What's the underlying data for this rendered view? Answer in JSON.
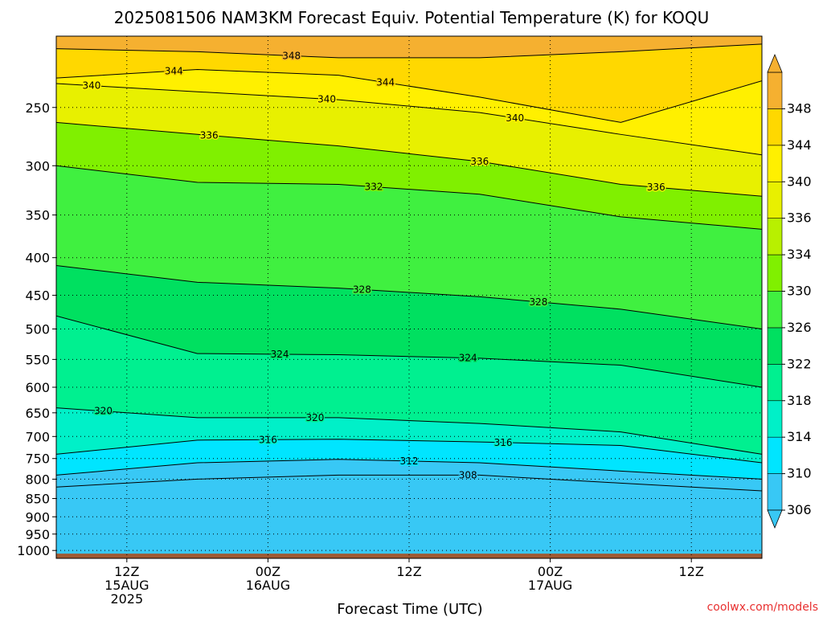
{
  "chart_data": {
    "type": "heatmap",
    "title": "2025081506 NAM3KM Forecast Equiv. Potential Temperature (K) for KOQU",
    "xlabel": "Forecast Time (UTC)",
    "ylabel": "",
    "credit": "coolwx.com/models",
    "y_scale": "log",
    "y_inverted": true,
    "ylim": [
      1025,
      200
    ],
    "y_ticks": [
      250,
      300,
      350,
      400,
      450,
      500,
      550,
      600,
      650,
      700,
      750,
      800,
      850,
      900,
      950,
      1000
    ],
    "x_unit": "hours_since_2025-08-15T06Z",
    "xlim": [
      0,
      60
    ],
    "x_ticks": [
      {
        "x": 6,
        "lines": [
          "12Z",
          "15AUG",
          "2025"
        ]
      },
      {
        "x": 18,
        "lines": [
          "00Z",
          "16AUG"
        ]
      },
      {
        "x": 30,
        "lines": [
          "12Z"
        ]
      },
      {
        "x": 42,
        "lines": [
          "00Z",
          "17AUG"
        ]
      },
      {
        "x": 54,
        "lines": [
          "12Z"
        ]
      }
    ],
    "grid": true,
    "colorbar": {
      "levels": [
        306,
        310,
        314,
        318,
        322,
        326,
        330,
        334,
        336,
        340,
        344,
        348
      ],
      "colors": [
        "#38c8f5",
        "#00e5ff",
        "#00f0c8",
        "#00f090",
        "#00e060",
        "#40f040",
        "#80f000",
        "#b8f000",
        "#e8f000",
        "#fff000",
        "#ffd800",
        "#f5b030"
      ]
    },
    "isentropes": [
      {
        "value": 348,
        "p": [
          208,
          210,
          214,
          214,
          210,
          205
        ],
        "labels": [
          {
            "x": 20,
            "text": "348"
          }
        ]
      },
      {
        "value": 344,
        "p": [
          228,
          222,
          226,
          242,
          262,
          230
        ],
        "labels": [
          {
            "x": 10,
            "text": "344"
          },
          {
            "x": 28,
            "text": "344"
          }
        ]
      },
      {
        "value": 340,
        "p": [
          232,
          238,
          244,
          254,
          272,
          290
        ],
        "labels": [
          {
            "x": 3,
            "text": "340"
          },
          {
            "x": 23,
            "text": "340"
          },
          {
            "x": 39,
            "text": "340"
          }
        ]
      },
      {
        "value": 336,
        "p": [
          262,
          272,
          282,
          296,
          318,
          330
        ],
        "labels": [
          {
            "x": 13,
            "text": "336"
          },
          {
            "x": 36,
            "text": "336"
          },
          {
            "x": 51,
            "text": "336"
          }
        ]
      },
      {
        "value": 332,
        "p": [
          300,
          316,
          318,
          328,
          352,
          366
        ],
        "labels": [
          {
            "x": 27,
            "text": "332"
          }
        ]
      },
      {
        "value": 328,
        "p": [
          410,
          432,
          440,
          452,
          470,
          500
        ],
        "labels": [
          {
            "x": 26,
            "text": "328"
          },
          {
            "x": 41,
            "text": "328"
          }
        ]
      },
      {
        "value": 324,
        "p": [
          480,
          540,
          542,
          548,
          560,
          600
        ],
        "labels": [
          {
            "x": 19,
            "text": "324"
          },
          {
            "x": 35,
            "text": "324"
          }
        ]
      },
      {
        "value": 320,
        "p": [
          640,
          660,
          660,
          672,
          690,
          740
        ],
        "labels": [
          {
            "x": 4,
            "text": "320"
          },
          {
            "x": 22,
            "text": "320"
          }
        ]
      },
      {
        "value": 316,
        "p": [
          740,
          708,
          706,
          712,
          720,
          760
        ],
        "labels": [
          {
            "x": 18,
            "text": "316"
          },
          {
            "x": 38,
            "text": "316"
          }
        ]
      },
      {
        "value": 312,
        "p": [
          790,
          760,
          752,
          760,
          780,
          800
        ],
        "labels": [
          {
            "x": 30,
            "text": "312"
          }
        ]
      },
      {
        "value": 308,
        "p": [
          820,
          800,
          790,
          790,
          810,
          830
        ],
        "labels": [
          {
            "x": 35,
            "text": "308"
          }
        ]
      }
    ],
    "surface_pressure": 1010,
    "ground_color": "#a05a32"
  }
}
